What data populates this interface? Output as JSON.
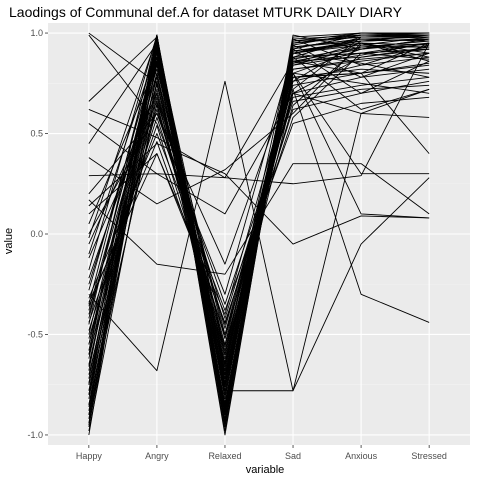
{
  "chart_data": {
    "type": "line",
    "title": "Laodings of Communal def.A for dataset MTURK DAILY DIARY",
    "xlabel": "variable",
    "ylabel": "value",
    "categories": [
      "Happy",
      "Angry",
      "Relaxed",
      "Sad",
      "Anxious",
      "Stressed"
    ],
    "ylim": [
      -1.05,
      1.05
    ],
    "yticks": [
      -1.0,
      -0.5,
      0.0,
      0.5,
      1.0
    ],
    "ytick_labels": [
      "-1.0",
      "-0.5",
      "0.0",
      "0.5",
      "1.0"
    ],
    "grid": true,
    "legend": "none",
    "colors": {
      "panel": "#ebebeb",
      "grid_major": "#ffffff",
      "grid_minor": "#f2f2f2",
      "line": "#000000"
    },
    "series": [
      {
        "values": [
          1.0,
          0.75,
          -0.7,
          0.88,
          0.98,
          0.98
        ]
      },
      {
        "values": [
          0.99,
          0.55,
          -0.3,
          0.9,
          0.95,
          0.9
        ]
      },
      {
        "values": [
          0.66,
          0.98,
          -0.85,
          0.92,
          0.99,
          0.99
        ]
      },
      {
        "values": [
          0.62,
          0.48,
          0.28,
          0.86,
          0.8,
          0.4
        ]
      },
      {
        "values": [
          0.55,
          0.3,
          0.1,
          0.7,
          0.6,
          0.72
        ]
      },
      {
        "values": [
          0.45,
          0.95,
          -0.6,
          0.95,
          0.99,
          1.0
        ]
      },
      {
        "values": [
          0.38,
          0.15,
          0.32,
          0.6,
          0.95,
          0.86
        ]
      },
      {
        "values": [
          0.29,
          0.3,
          0.28,
          0.25,
          0.29,
          0.95
        ]
      },
      {
        "values": [
          0.2,
          0.6,
          -0.15,
          0.8,
          0.1,
          0.08
        ]
      },
      {
        "values": [
          0.17,
          -0.15,
          -0.2,
          0.35,
          0.35,
          0.1
        ]
      },
      {
        "values": [
          0.14,
          0.45,
          0.3,
          -0.05,
          0.09,
          0.08
        ]
      },
      {
        "values": [
          0.1,
          0.4,
          -0.4,
          0.8,
          0.3,
          0.3
        ]
      },
      {
        "values": [
          0.05,
          0.85,
          -0.5,
          0.78,
          0.8,
          0.95
        ]
      },
      {
        "values": [
          -0.02,
          0.98,
          -0.72,
          0.93,
          0.97,
          0.98
        ]
      },
      {
        "values": [
          -0.05,
          0.7,
          -0.55,
          0.85,
          0.9,
          0.92
        ]
      },
      {
        "values": [
          -0.1,
          0.92,
          -0.68,
          0.87,
          0.93,
          0.93
        ]
      },
      {
        "values": [
          -0.18,
          0.99,
          -0.8,
          0.92,
          0.99,
          0.99
        ]
      },
      {
        "values": [
          -0.28,
          0.9,
          -0.75,
          0.78,
          0.8,
          0.85
        ]
      },
      {
        "values": [
          -0.3,
          -0.68,
          0.76,
          -0.78,
          -0.05,
          0.28
        ]
      },
      {
        "values": [
          -0.35,
          0.96,
          -0.88,
          0.9,
          0.97,
          0.96
        ]
      },
      {
        "values": [
          -0.4,
          0.8,
          -0.6,
          0.85,
          0.95,
          0.88
        ]
      },
      {
        "values": [
          -0.45,
          0.99,
          -0.9,
          0.94,
          1.0,
          0.99
        ]
      },
      {
        "values": [
          -0.5,
          0.88,
          -0.65,
          0.9,
          0.85,
          0.78
        ]
      },
      {
        "values": [
          -0.55,
          0.93,
          -0.78,
          0.88,
          0.9,
          0.92
        ]
      },
      {
        "values": [
          -0.6,
          0.97,
          -0.82,
          0.93,
          0.96,
          0.97
        ]
      },
      {
        "values": [
          -0.65,
          0.85,
          -0.7,
          0.82,
          0.86,
          0.9
        ]
      },
      {
        "values": [
          -0.68,
          0.98,
          -0.92,
          0.95,
          0.99,
          0.98
        ]
      },
      {
        "values": [
          -0.72,
          0.9,
          -0.74,
          0.86,
          0.92,
          0.95
        ]
      },
      {
        "values": [
          -0.75,
          0.99,
          -0.95,
          0.96,
          1.0,
          1.0
        ]
      },
      {
        "values": [
          -0.78,
          0.94,
          -0.85,
          0.9,
          0.94,
          0.93
        ]
      },
      {
        "values": [
          -0.8,
          0.96,
          -0.9,
          0.93,
          0.97,
          0.96
        ]
      },
      {
        "values": [
          -0.82,
          0.86,
          -0.8,
          0.88,
          0.9,
          0.87
        ]
      },
      {
        "values": [
          -0.85,
          0.98,
          -0.93,
          0.96,
          0.98,
          0.99
        ]
      },
      {
        "values": [
          -0.88,
          0.92,
          -0.87,
          0.91,
          0.95,
          0.94
        ]
      },
      {
        "values": [
          -0.9,
          0.99,
          -0.96,
          0.97,
          0.99,
          0.99
        ]
      },
      {
        "values": [
          -0.92,
          0.94,
          -0.89,
          0.9,
          0.96,
          0.97
        ]
      },
      {
        "values": [
          -0.95,
          0.97,
          -0.98,
          0.95,
          0.98,
          0.98
        ]
      },
      {
        "values": [
          -1.0,
          0.99,
          -1.0,
          0.98,
          1.0,
          1.0
        ]
      },
      {
        "values": [
          -0.98,
          0.75,
          -0.72,
          0.8,
          0.75,
          0.7
        ]
      },
      {
        "values": [
          -0.85,
          0.65,
          -0.6,
          0.72,
          -0.3,
          -0.44
        ]
      },
      {
        "values": [
          -0.7,
          0.72,
          -0.62,
          0.78,
          0.82,
          0.8
        ]
      },
      {
        "values": [
          -0.6,
          0.62,
          -0.52,
          0.7,
          0.78,
          0.82
        ]
      },
      {
        "values": [
          -0.48,
          0.58,
          -0.45,
          0.62,
          0.7,
          0.76
        ]
      },
      {
        "values": [
          -0.32,
          0.5,
          -0.38,
          0.55,
          0.65,
          0.68
        ]
      },
      {
        "values": [
          -0.75,
          0.8,
          -0.78,
          -0.78,
          0.6,
          0.58
        ]
      },
      {
        "values": [
          -0.62,
          0.88,
          -0.7,
          0.7,
          0.88,
          0.92
        ]
      },
      {
        "values": [
          -0.55,
          0.78,
          -0.66,
          0.84,
          0.93,
          0.96
        ]
      },
      {
        "values": [
          -0.42,
          0.91,
          -0.76,
          0.91,
          0.96,
          0.97
        ]
      },
      {
        "values": [
          -0.38,
          0.86,
          -0.58,
          0.82,
          0.87,
          0.9
        ]
      },
      {
        "values": [
          -0.25,
          0.82,
          -0.52,
          0.76,
          0.84,
          0.88
        ]
      },
      {
        "values": [
          -0.22,
          0.74,
          -0.47,
          0.74,
          0.8,
          0.84
        ]
      },
      {
        "values": [
          -0.12,
          0.66,
          -0.42,
          0.68,
          0.74,
          0.78
        ]
      },
      {
        "values": [
          0.0,
          0.6,
          -0.35,
          0.66,
          0.72,
          0.74
        ]
      },
      {
        "values": [
          -0.9,
          0.68,
          -0.64,
          0.88,
          0.62,
          0.72
        ]
      },
      {
        "values": [
          -0.8,
          0.76,
          -0.68,
          0.92,
          0.7,
          0.86
        ]
      },
      {
        "values": [
          -0.66,
          0.84,
          -0.74,
          0.94,
          0.78,
          0.9
        ]
      },
      {
        "values": [
          -0.58,
          0.92,
          -0.86,
          0.97,
          0.84,
          0.94
        ]
      },
      {
        "values": [
          -0.94,
          0.96,
          -0.94,
          0.99,
          0.92,
          0.97
        ]
      },
      {
        "values": [
          -0.96,
          0.88,
          -0.88,
          0.86,
          0.88,
          0.93
        ]
      },
      {
        "values": [
          -0.86,
          0.8,
          -0.84,
          0.84,
          0.89,
          0.95
        ]
      },
      {
        "values": [
          -0.74,
          0.7,
          -0.76,
          0.8,
          0.92,
          0.97
        ]
      },
      {
        "values": [
          -0.52,
          0.64,
          -0.64,
          0.76,
          0.96,
          0.99
        ]
      },
      {
        "values": [
          -0.44,
          0.54,
          -0.56,
          0.72,
          0.98,
          0.99
        ]
      },
      {
        "values": [
          -0.36,
          0.46,
          -0.5,
          0.64,
          0.94,
          0.98
        ]
      },
      {
        "values": [
          -0.34,
          0.4,
          -0.44,
          0.58,
          0.9,
          0.95
        ]
      }
    ]
  }
}
